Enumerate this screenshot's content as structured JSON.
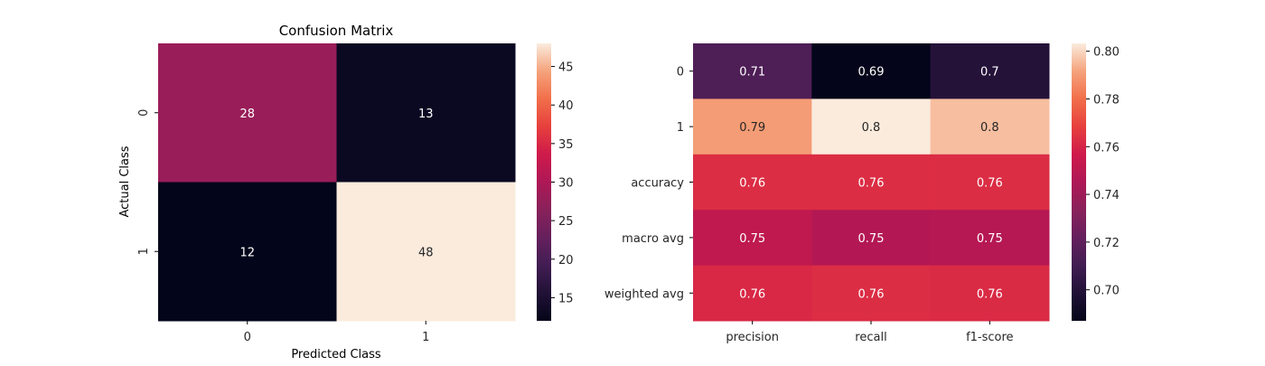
{
  "chart_data": [
    {
      "type": "heatmap",
      "title": "Confusion Matrix",
      "xlabel": "Predicted Class",
      "ylabel": "Actual Class",
      "x_categories": [
        "0",
        "1"
      ],
      "y_categories": [
        "0",
        "1"
      ],
      "values": [
        [
          28,
          13
        ],
        [
          12,
          48
        ]
      ],
      "colorbar": {
        "vmin": 12,
        "vmax": 48,
        "ticks": [
          15,
          20,
          25,
          30,
          35,
          40,
          45
        ],
        "tick_labels": [
          "15",
          "20",
          "25",
          "30",
          "35",
          "40",
          "45"
        ]
      },
      "colormap": "rocket"
    },
    {
      "type": "heatmap",
      "title": "",
      "xlabel": "",
      "ylabel": "",
      "x_categories": [
        "precision",
        "recall",
        "f1-score"
      ],
      "y_categories": [
        "0",
        "1",
        "accuracy",
        "macro avg",
        "weighted avg"
      ],
      "values": [
        [
          0.7143,
          0.6872,
          0.7
        ],
        [
          0.79,
          0.8033,
          0.796
        ],
        [
          0.7627,
          0.7627,
          0.7627
        ],
        [
          0.7513,
          0.7472,
          0.748
        ],
        [
          0.7612,
          0.7627,
          0.7619
        ]
      ],
      "annotations": [
        [
          "0.71",
          "0.69",
          "0.7"
        ],
        [
          "0.79",
          "0.8",
          "0.8"
        ],
        [
          "0.76",
          "0.76",
          "0.76"
        ],
        [
          "0.75",
          "0.75",
          "0.75"
        ],
        [
          "0.76",
          "0.76",
          "0.76"
        ]
      ],
      "colorbar": {
        "vmin": 0.687,
        "vmax": 0.8033,
        "ticks": [
          0.7,
          0.72,
          0.74,
          0.76,
          0.78,
          0.8
        ],
        "tick_labels": [
          "0.70",
          "0.72",
          "0.74",
          "0.76",
          "0.78",
          "0.80"
        ]
      },
      "colormap": "rocket"
    }
  ]
}
